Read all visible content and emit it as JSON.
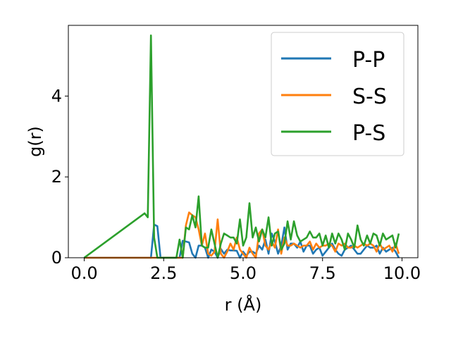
{
  "chart_data": {
    "type": "line",
    "title": "",
    "xlabel": "r (Å)",
    "ylabel": "g(r)",
    "xlim": [
      -0.5,
      10.5
    ],
    "ylim": [
      0,
      5.75
    ],
    "xticks": [
      0.0,
      2.5,
      5.0,
      7.5,
      10.0
    ],
    "xtick_labels": [
      "0.0",
      "2.5",
      "5.0",
      "7.5",
      "10.0"
    ],
    "yticks": [
      0,
      2,
      4
    ],
    "ytick_labels": [
      "0",
      "2",
      "4"
    ],
    "grid": false,
    "legend_position": "top-right",
    "series": [
      {
        "name": "P-P",
        "color": "#1f77b4",
        "x": [
          0.0,
          2.0,
          2.1,
          2.2,
          2.3,
          2.4,
          2.5,
          2.6,
          2.7,
          2.8,
          2.9,
          3.0,
          3.1,
          3.2,
          3.3,
          3.4,
          3.5,
          3.6,
          3.7,
          3.8,
          3.9,
          4.0,
          4.1,
          4.2,
          4.3,
          4.4,
          4.5,
          4.6,
          4.7,
          4.8,
          4.9,
          5.0,
          5.1,
          5.2,
          5.3,
          5.4,
          5.5,
          5.6,
          5.7,
          5.8,
          5.9,
          6.0,
          6.1,
          6.2,
          6.3,
          6.4,
          6.5,
          6.6,
          6.7,
          6.8,
          6.9,
          7.0,
          7.1,
          7.2,
          7.3,
          7.4,
          7.5,
          7.6,
          7.7,
          7.8,
          7.9,
          8.0,
          8.1,
          8.2,
          8.3,
          8.4,
          8.5,
          8.6,
          8.7,
          8.8,
          8.9,
          9.0,
          9.1,
          9.2,
          9.3,
          9.4,
          9.5,
          9.6,
          9.7,
          9.8,
          9.9
        ],
        "values": [
          0,
          0,
          0,
          0.82,
          0.78,
          0,
          0,
          0,
          0,
          0,
          0,
          0,
          0.42,
          0.4,
          0.38,
          0.1,
          0,
          0.3,
          0.3,
          0.25,
          0,
          0.2,
          0.15,
          0,
          0.22,
          0.1,
          0.2,
          0.18,
          0.18,
          0.17,
          0,
          0.15,
          0.05,
          0.15,
          0.15,
          0.1,
          0.3,
          0.2,
          0.45,
          0.1,
          0.6,
          0.4,
          0.1,
          0.3,
          0.75,
          0.2,
          0.35,
          0.35,
          0.25,
          0.4,
          0.15,
          0.3,
          0.3,
          0.1,
          0.2,
          0.25,
          0.05,
          0.15,
          0.25,
          0.35,
          0.2,
          0.1,
          0.05,
          0.2,
          0.25,
          0.3,
          0.2,
          0.1,
          0.1,
          0.2,
          0.3,
          0.25,
          0.25,
          0.3,
          0.1,
          0.25,
          0.15,
          0.2,
          0.25,
          0.15,
          0.0
        ]
      },
      {
        "name": "S-S",
        "color": "#ff7f0e",
        "x": [
          0.0,
          3.1,
          3.2,
          3.3,
          3.4,
          3.5,
          3.6,
          3.7,
          3.8,
          3.9,
          4.0,
          4.1,
          4.2,
          4.3,
          4.4,
          4.5,
          4.6,
          4.7,
          4.8,
          4.9,
          5.0,
          5.1,
          5.2,
          5.3,
          5.4,
          5.5,
          5.6,
          5.7,
          5.8,
          5.9,
          6.0,
          6.1,
          6.2,
          6.3,
          6.4,
          6.5,
          6.6,
          6.7,
          6.8,
          6.9,
          7.0,
          7.1,
          7.2,
          7.3,
          7.4,
          7.5,
          7.6,
          7.7,
          7.8,
          7.9,
          8.0,
          8.1,
          8.2,
          8.3,
          8.4,
          8.5,
          8.6,
          8.7,
          8.8,
          8.9,
          9.0,
          9.1,
          9.2,
          9.3,
          9.4,
          9.5,
          9.6,
          9.7,
          9.8,
          9.9
        ],
        "values": [
          0,
          0,
          0.8,
          1.12,
          1.05,
          1.0,
          0.7,
          0.3,
          0.6,
          0.1,
          0.05,
          0.15,
          0.95,
          0.1,
          0.0,
          0.15,
          0.35,
          0.2,
          0.5,
          0.2,
          0.1,
          0.0,
          0.25,
          0.1,
          0.0,
          0.6,
          0.7,
          0.3,
          0.2,
          0.4,
          0.25,
          0.7,
          0.1,
          0.5,
          0.3,
          0.3,
          0.35,
          0.3,
          0.25,
          0.3,
          0.3,
          0.4,
          0.2,
          0.35,
          0.25,
          0.3,
          0.3,
          0.35,
          0.3,
          0.15,
          0.35,
          0.3,
          0.35,
          0.25,
          0.25,
          0.3,
          0.25,
          0.3,
          0.35,
          0.3,
          0.35,
          0.3,
          0.15,
          0.35,
          0.2,
          0.25,
          0.3,
          0.15,
          0.35,
          0.1
        ]
      },
      {
        "name": "P-S",
        "color": "#2ca02c",
        "x": [
          0.0,
          1.9,
          2.0,
          2.1,
          2.2,
          2.3,
          2.4,
          2.5,
          2.6,
          2.7,
          2.8,
          2.9,
          3.0,
          3.1,
          3.2,
          3.3,
          3.4,
          3.5,
          3.6,
          3.7,
          3.8,
          3.9,
          4.0,
          4.1,
          4.2,
          4.3,
          4.4,
          4.5,
          4.6,
          4.7,
          4.8,
          4.9,
          5.0,
          5.1,
          5.2,
          5.3,
          5.4,
          5.5,
          5.6,
          5.7,
          5.8,
          5.9,
          6.0,
          6.1,
          6.2,
          6.3,
          6.4,
          6.5,
          6.6,
          6.7,
          6.8,
          6.9,
          7.0,
          7.1,
          7.2,
          7.3,
          7.4,
          7.5,
          7.6,
          7.7,
          7.8,
          7.9,
          8.0,
          8.1,
          8.2,
          8.3,
          8.4,
          8.5,
          8.6,
          8.7,
          8.8,
          8.9,
          9.0,
          9.1,
          9.2,
          9.3,
          9.4,
          9.5,
          9.6,
          9.7,
          9.8,
          9.9
        ],
        "values": [
          0,
          1.1,
          1.0,
          5.5,
          0.5,
          0.0,
          0.0,
          0.0,
          0.0,
          0.0,
          0.0,
          0.0,
          0.45,
          0.0,
          0.75,
          0.7,
          1.05,
          0.75,
          1.52,
          0.3,
          0.25,
          0.25,
          0.7,
          0.35,
          0.0,
          0.35,
          0.6,
          0.55,
          0.5,
          0.5,
          0.35,
          0.95,
          0.3,
          0.5,
          1.35,
          0.5,
          0.75,
          0.4,
          0.7,
          0.5,
          1.0,
          0.3,
          0.6,
          0.65,
          0.2,
          0.35,
          0.9,
          0.45,
          0.9,
          0.55,
          0.4,
          0.45,
          0.5,
          0.65,
          0.5,
          0.5,
          0.6,
          0.3,
          0.55,
          0.25,
          0.6,
          0.35,
          0.6,
          0.45,
          0.2,
          0.6,
          0.45,
          0.25,
          0.8,
          0.45,
          0.3,
          0.55,
          0.35,
          0.6,
          0.55,
          0.3,
          0.6,
          0.45,
          0.5,
          0.55,
          0.25,
          0.6
        ]
      }
    ]
  }
}
